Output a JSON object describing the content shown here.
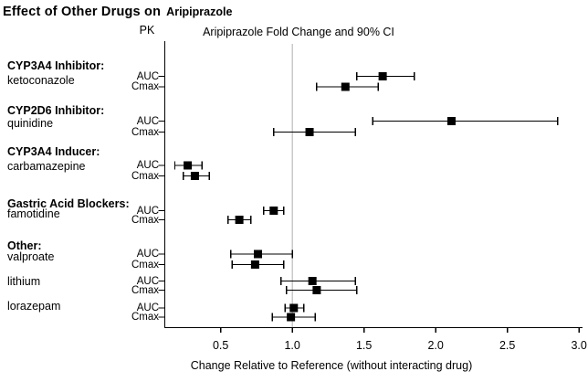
{
  "title": {
    "main": "Effect of Other Drugs on",
    "drug": "Aripiprazole"
  },
  "headers": {
    "pk": "PK",
    "plot": "Aripiprazole Fold Change and 90% CI"
  },
  "xaxis": {
    "label": "Change Relative to Reference (without interacting drug)",
    "tick_labels": [
      "0.5",
      "1.0",
      "1.5",
      "2.0",
      "2.5",
      "3.0"
    ],
    "min": 0.11,
    "max": 3.0
  },
  "colors": {
    "marker": "#000000",
    "error_bar": "#000000",
    "axis": "#000000",
    "reference_line": "#c9c9c9",
    "background": "#ffffff",
    "text": "#000000"
  },
  "chart_data": {
    "type": "forest",
    "title": "Aripiprazole Fold Change and 90% CI",
    "xlabel": "Change Relative to Reference (without interacting drug)",
    "xlim": [
      0.11,
      3.0
    ],
    "reference_line": 1.0,
    "ci_level": "90%",
    "pk_measures": [
      "AUC",
      "Cmax"
    ],
    "groups": [
      {
        "label": "CYP3A4 Inhibitor:",
        "drugs": [
          {
            "name": "ketoconazole",
            "rows": [
              {
                "pk": "AUC",
                "value": 1.63,
                "ci_low": 1.45,
                "ci_high": 1.85
              },
              {
                "pk": "Cmax",
                "value": 1.37,
                "ci_low": 1.17,
                "ci_high": 1.6
              }
            ]
          }
        ]
      },
      {
        "label": "CYP2D6 Inhibitor:",
        "drugs": [
          {
            "name": "quinidine",
            "rows": [
              {
                "pk": "AUC",
                "value": 2.11,
                "ci_low": 1.56,
                "ci_high": 2.85
              },
              {
                "pk": "Cmax",
                "value": 1.12,
                "ci_low": 0.87,
                "ci_high": 1.44
              }
            ]
          }
        ]
      },
      {
        "label": "CYP3A4 Inducer:",
        "drugs": [
          {
            "name": "carbamazepine",
            "rows": [
              {
                "pk": "AUC",
                "value": 0.27,
                "ci_low": 0.18,
                "ci_high": 0.37
              },
              {
                "pk": "Cmax",
                "value": 0.32,
                "ci_low": 0.24,
                "ci_high": 0.42
              }
            ]
          }
        ]
      },
      {
        "label": "Gastric Acid Blockers:",
        "drugs": [
          {
            "name": "famotidine",
            "rows": [
              {
                "pk": "AUC",
                "value": 0.87,
                "ci_low": 0.8,
                "ci_high": 0.94
              },
              {
                "pk": "Cmax",
                "value": 0.63,
                "ci_low": 0.55,
                "ci_high": 0.71
              }
            ]
          }
        ]
      },
      {
        "label": "Other:",
        "drugs": [
          {
            "name": "valproate",
            "rows": [
              {
                "pk": "AUC",
                "value": 0.76,
                "ci_low": 0.57,
                "ci_high": 1.0
              },
              {
                "pk": "Cmax",
                "value": 0.74,
                "ci_low": 0.58,
                "ci_high": 0.94
              }
            ]
          },
          {
            "name": "lithium",
            "rows": [
              {
                "pk": "AUC",
                "value": 1.14,
                "ci_low": 0.92,
                "ci_high": 1.44
              },
              {
                "pk": "Cmax",
                "value": 1.17,
                "ci_low": 0.96,
                "ci_high": 1.45
              }
            ]
          },
          {
            "name": "lorazepam",
            "rows": [
              {
                "pk": "AUC",
                "value": 1.01,
                "ci_low": 0.95,
                "ci_high": 1.08
              },
              {
                "pk": "Cmax",
                "value": 0.99,
                "ci_low": 0.86,
                "ci_high": 1.16
              }
            ]
          }
        ]
      }
    ]
  }
}
